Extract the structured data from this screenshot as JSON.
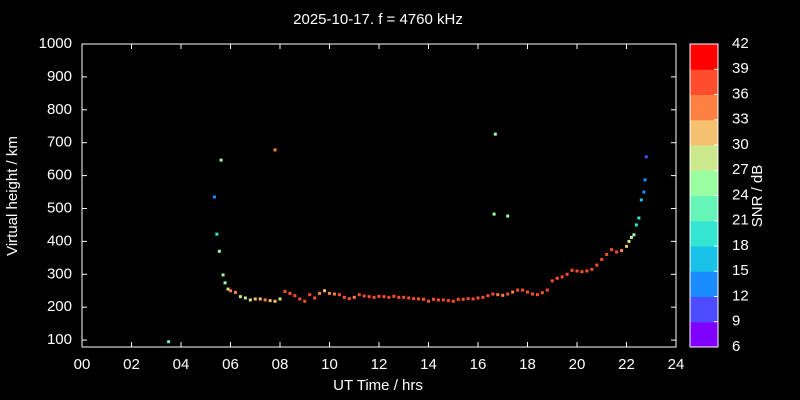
{
  "chart_data": {
    "type": "scatter",
    "title": "2025-10-17. f = 4760 kHz",
    "x_label": "UT Time / hrs",
    "y_label": "Virtual height / km",
    "colorbar_label": "SNR / dB",
    "xlim": [
      0,
      24
    ],
    "xticks": [
      {
        "value": 0,
        "label": "00"
      },
      {
        "value": 2,
        "label": "02"
      },
      {
        "value": 4,
        "label": "04"
      },
      {
        "value": 6,
        "label": "06"
      },
      {
        "value": 8,
        "label": "08"
      },
      10,
      12,
      14,
      16,
      18,
      20,
      22,
      24
    ],
    "ylim": [
      79,
      1000
    ],
    "yticks": [
      100,
      200,
      300,
      400,
      500,
      600,
      700,
      800,
      900,
      1000
    ],
    "clim": [
      6,
      42
    ],
    "cticks": [
      6,
      9,
      12,
      15,
      18,
      21,
      24,
      27,
      30,
      33,
      36,
      39,
      42
    ],
    "colormap": [
      "#8000ff",
      "#4d4dff",
      "#1a8cff",
      "#19c3e8",
      "#33e6d2",
      "#66f5b8",
      "#99ffa0",
      "#cce88c",
      "#f5c070",
      "#ff8040",
      "#ff4d2e",
      "#ff0000"
    ],
    "series": [
      {
        "x": [
          3.5,
          5.35,
          5.45,
          5.55,
          5.62,
          5.7,
          5.78,
          5.9,
          6.0,
          6.2,
          6.4,
          6.6,
          6.8,
          7.0,
          7.2,
          7.4,
          7.6,
          7.8,
          8.0,
          8.2,
          8.4,
          8.6,
          8.8,
          9.0,
          9.2,
          9.4,
          9.6,
          9.8,
          10.0,
          10.2,
          10.4,
          10.6,
          10.8,
          11.0,
          11.2,
          11.4,
          11.6,
          11.8,
          12.0,
          12.2,
          12.4,
          12.6,
          12.8,
          13.0,
          13.2,
          13.4,
          13.6,
          13.8,
          14.0,
          14.2,
          14.4,
          14.6,
          14.8,
          15.0,
          15.2,
          15.4,
          15.6,
          15.8,
          16.0,
          16.2,
          16.4,
          16.6,
          16.8,
          17.0,
          17.2,
          17.4,
          17.6,
          17.8,
          18.0,
          18.2,
          18.4,
          18.6,
          18.8,
          19.0,
          19.2,
          19.4,
          19.6,
          19.8,
          20.0,
          20.2,
          20.4,
          20.6,
          20.8,
          21.0,
          21.2,
          21.4,
          21.6,
          21.8,
          22.0,
          22.1,
          22.2,
          22.3,
          22.4,
          22.5,
          22.6,
          22.7,
          22.75,
          22.8,
          7.8,
          16.7,
          16.65,
          17.2
        ],
        "y": [
          95,
          535,
          422,
          370,
          647,
          298,
          274,
          255,
          250,
          245,
          232,
          228,
          222,
          225,
          225,
          222,
          220,
          218,
          225,
          248,
          242,
          235,
          225,
          218,
          238,
          228,
          242,
          250,
          242,
          240,
          238,
          230,
          226,
          230,
          238,
          234,
          232,
          230,
          233,
          232,
          230,
          233,
          230,
          230,
          228,
          226,
          225,
          224,
          218,
          224,
          222,
          222,
          220,
          218,
          224,
          224,
          226,
          225,
          228,
          230,
          235,
          240,
          238,
          236,
          240,
          246,
          252,
          252,
          246,
          240,
          238,
          244,
          252,
          280,
          288,
          292,
          300,
          312,
          310,
          308,
          310,
          315,
          328,
          345,
          360,
          375,
          368,
          372,
          385,
          400,
          412,
          420,
          450,
          471,
          526,
          550,
          587,
          657,
          678,
          726,
          483,
          477
        ],
        "snr": [
          22,
          13,
          19,
          24,
          25,
          25,
          25,
          29,
          33,
          35,
          27,
          27,
          29,
          30,
          31,
          33,
          32,
          30,
          27,
          36,
          37,
          36,
          36,
          36,
          37,
          36,
          35,
          30,
          35,
          35,
          36,
          36,
          36,
          35,
          36,
          36,
          36,
          36,
          36,
          36,
          36,
          36,
          36,
          36,
          36,
          36,
          36,
          36,
          37,
          36,
          36,
          36,
          36,
          37,
          36,
          36,
          36,
          36,
          36,
          36,
          36,
          36,
          35,
          34,
          36,
          34,
          37,
          37,
          36,
          36,
          36,
          36,
          36,
          36,
          36,
          36,
          36,
          36,
          36,
          36,
          36,
          36,
          36,
          36,
          37,
          38,
          37,
          35,
          31,
          29,
          27,
          24,
          20,
          18,
          16,
          14,
          12,
          9,
          35,
          26,
          25,
          25
        ]
      }
    ]
  }
}
